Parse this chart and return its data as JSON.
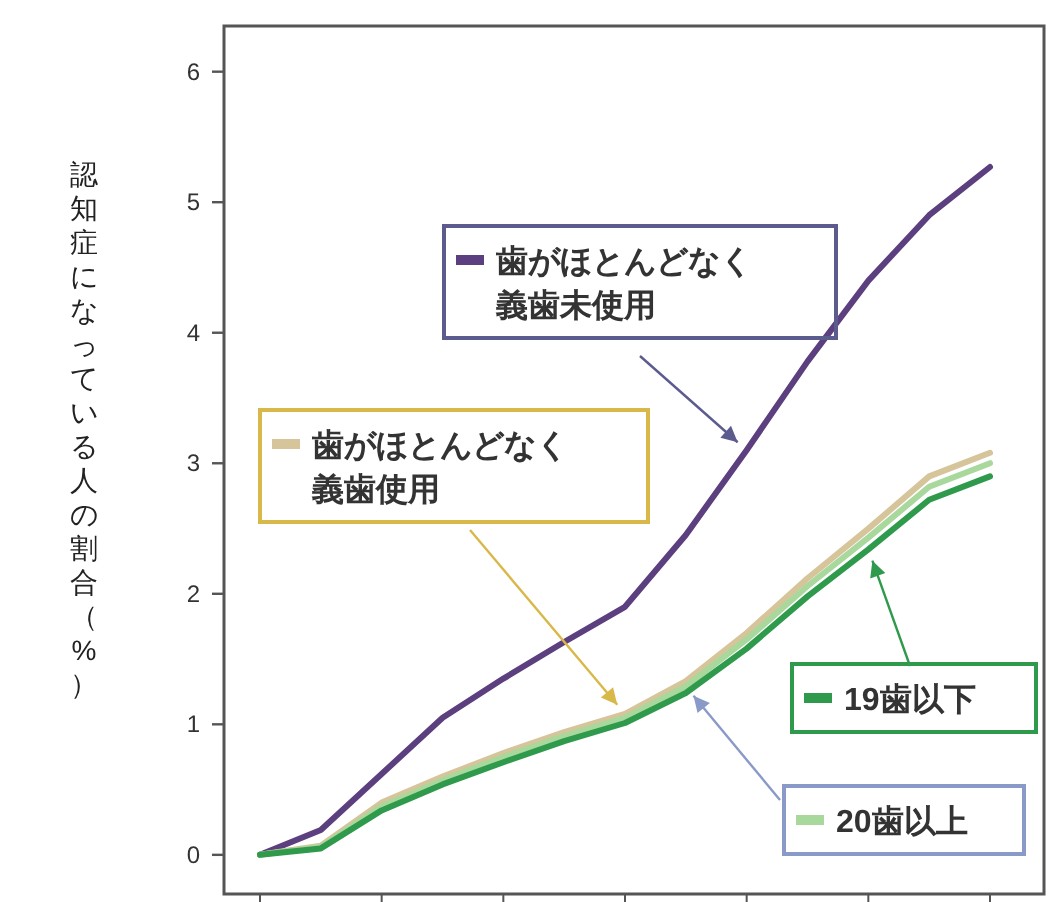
{
  "chart_data": {
    "type": "line",
    "ylabel": "認知症になっている人の割合（%）",
    "categories": [
      null,
      null,
      null,
      null,
      null,
      null,
      null,
      null,
      null,
      null,
      null,
      null,
      null
    ],
    "ylim": [
      -0.3,
      6.35
    ],
    "yticks": [
      0,
      1,
      2,
      3,
      4,
      5,
      6
    ],
    "tick_labels": "y",
    "legend": "center",
    "grid": false,
    "marker": "none",
    "line_style": "solid",
    "series": [
      {
        "name": "歯がほとんどなく義歯未使用",
        "color": "#5b3f7e",
        "values": [
          0,
          0.19,
          0.62,
          1.05,
          1.35,
          1.63,
          1.9,
          2.45,
          3.1,
          3.78,
          4.4,
          4.9,
          5.27
        ]
      },
      {
        "name": "歯がほとんどなく義歯使用",
        "color": "#d6c49a",
        "values": [
          0,
          0.07,
          0.4,
          0.6,
          0.78,
          0.94,
          1.08,
          1.33,
          1.7,
          2.12,
          2.5,
          2.9,
          3.08
        ]
      },
      {
        "name": "20歯以上",
        "color": "#a9d89c",
        "values": [
          0,
          0.06,
          0.37,
          0.57,
          0.75,
          0.91,
          1.05,
          1.29,
          1.65,
          2.06,
          2.43,
          2.82,
          3.0
        ]
      },
      {
        "name": "19歯以下",
        "color": "#2f9a4c",
        "values": [
          0,
          0.05,
          0.34,
          0.54,
          0.71,
          0.87,
          1.01,
          1.24,
          1.58,
          1.98,
          2.34,
          2.72,
          2.9
        ]
      }
    ]
  }
}
